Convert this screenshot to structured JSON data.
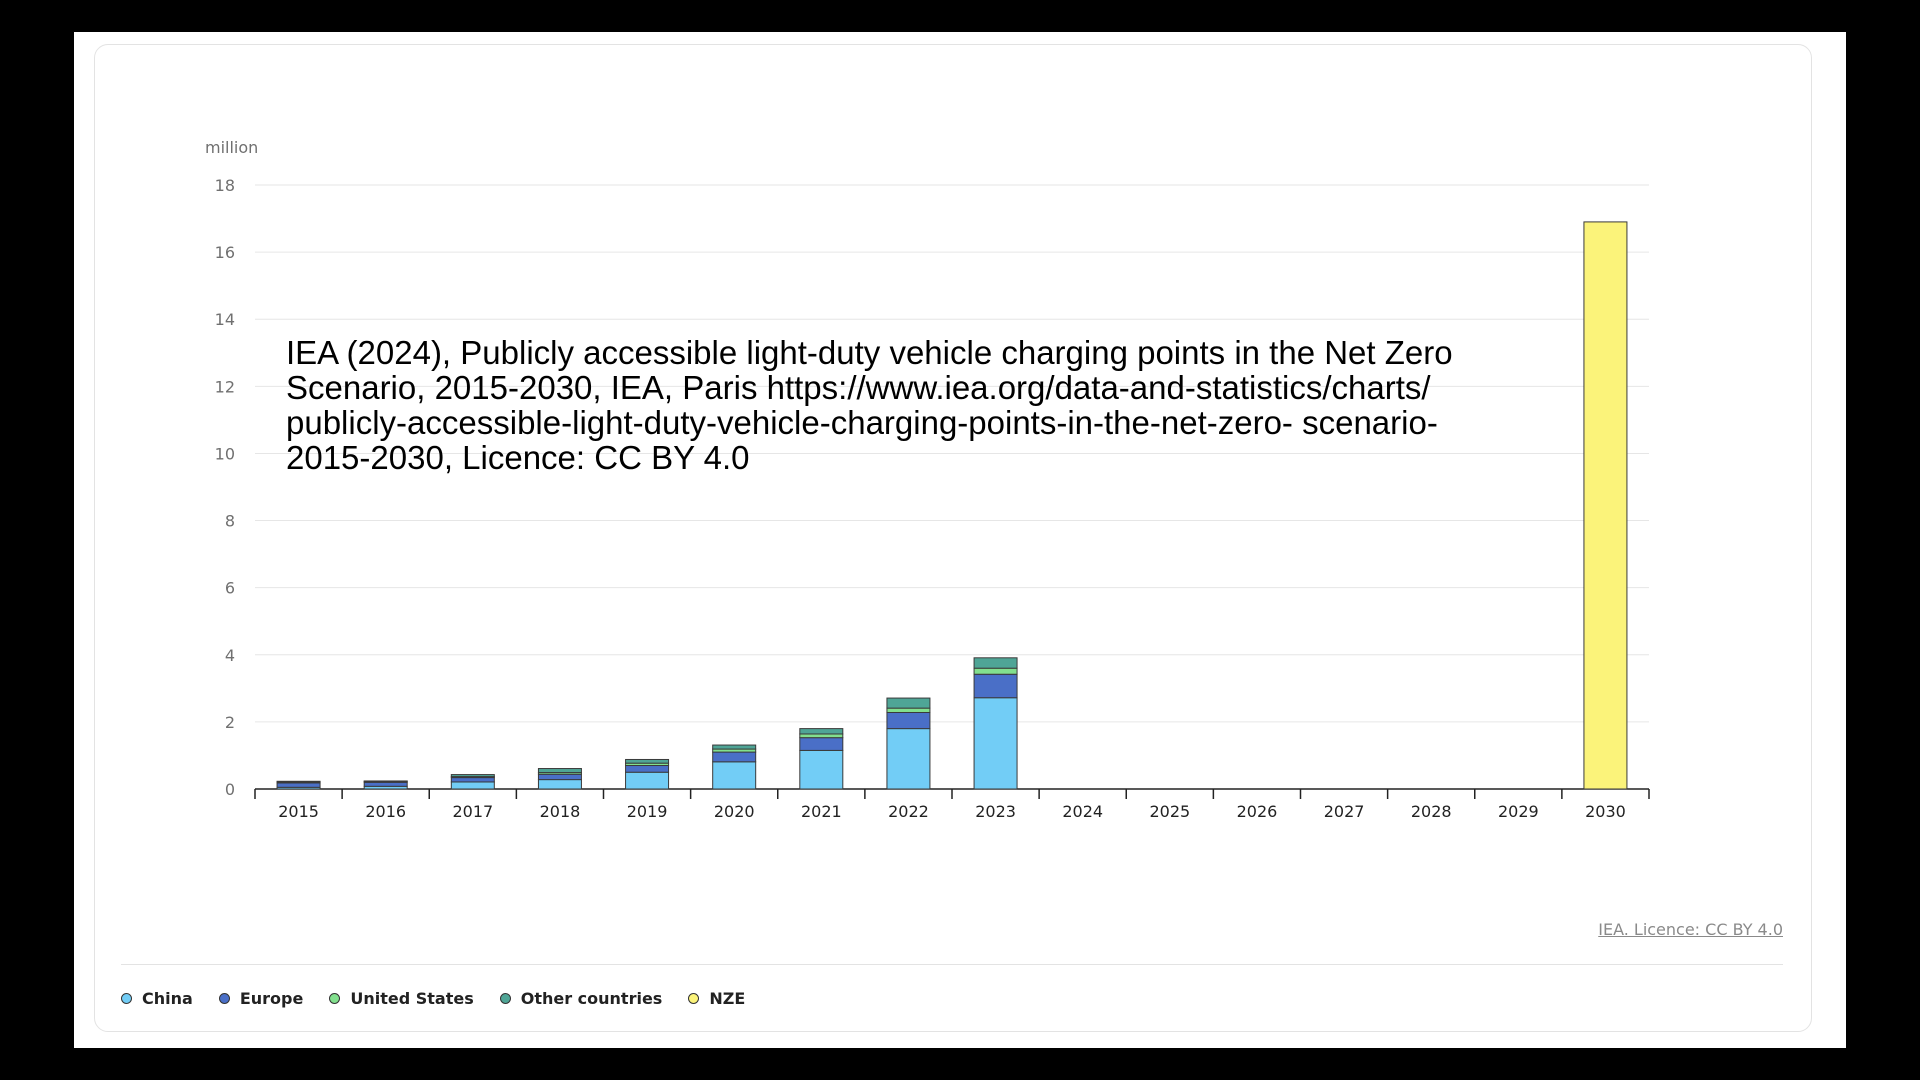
{
  "chart_data": {
    "type": "bar",
    "stacked": true,
    "unit_label": "million",
    "categories": [
      "2015",
      "2016",
      "2017",
      "2018",
      "2019",
      "2020",
      "2021",
      "2022",
      "2023",
      "2024",
      "2025",
      "2026",
      "2027",
      "2028",
      "2029",
      "2030"
    ],
    "series": [
      {
        "name": "China",
        "color": "#72cdf6",
        "values": [
          0.05,
          0.08,
          0.21,
          0.28,
          0.5,
          0.81,
          1.15,
          1.8,
          2.72,
          null,
          null,
          null,
          null,
          null,
          null,
          null
        ]
      },
      {
        "name": "Europe",
        "color": "#4a6fc7",
        "values": [
          0.13,
          0.12,
          0.13,
          0.16,
          0.2,
          0.29,
          0.38,
          0.48,
          0.7,
          null,
          null,
          null,
          null,
          null,
          null,
          null
        ]
      },
      {
        "name": "United States",
        "color": "#82e08e",
        "values": [
          0.03,
          0.03,
          0.03,
          0.05,
          0.07,
          0.09,
          0.11,
          0.13,
          0.18,
          null,
          null,
          null,
          null,
          null,
          null,
          null
        ]
      },
      {
        "name": "Other countries",
        "color": "#4fa596",
        "values": [
          0.02,
          0.01,
          0.06,
          0.12,
          0.11,
          0.12,
          0.16,
          0.3,
          0.31,
          null,
          null,
          null,
          null,
          null,
          null,
          null
        ]
      },
      {
        "name": "NZE",
        "color": "#fbf37a",
        "values": [
          null,
          null,
          null,
          null,
          null,
          null,
          null,
          null,
          null,
          null,
          null,
          null,
          null,
          null,
          null,
          16.9
        ]
      }
    ],
    "ylim": [
      0,
      18
    ],
    "yticks": [
      0,
      2,
      4,
      6,
      8,
      10,
      12,
      14,
      16,
      18
    ],
    "grid": true,
    "legend_position": "bottom-left"
  },
  "overlay_text": "IEA (2024), Publicly accessible light-duty vehicle charging points in the Net Zero Scenario, 2015-2030, IEA, Paris https://www.iea.org/data-and-statistics/charts/ publicly-accessible-light-duty-vehicle-charging-points-in-the-net-zero- scenario-2015-2030, Licence: CC BY 4.0",
  "licence_link": "IEA. Licence: CC BY 4.0",
  "legend": [
    {
      "label": "China",
      "color": "#72cdf6"
    },
    {
      "label": "Europe",
      "color": "#4a6fc7"
    },
    {
      "label": "United States",
      "color": "#82e08e"
    },
    {
      "label": "Other countries",
      "color": "#4fa596"
    },
    {
      "label": "NZE",
      "color": "#fbf37a"
    }
  ]
}
